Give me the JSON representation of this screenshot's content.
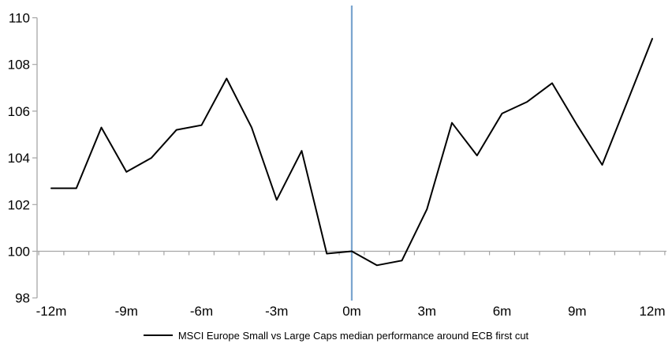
{
  "chart_data": {
    "type": "line",
    "title": "",
    "xlabel": "",
    "ylabel": "",
    "legend": "MSCI Europe Small vs Large Caps median performance around ECB first cut",
    "legend_position": "bottom-center",
    "x_unit": "months relative to ECB first cut",
    "x": [
      -12,
      -11,
      -10,
      -9,
      -8,
      -7,
      -6,
      -5,
      -4,
      -3,
      -2,
      -1,
      0,
      1,
      2,
      3,
      4,
      5,
      6,
      7,
      8,
      9,
      10,
      11,
      12
    ],
    "series": [
      {
        "name": "MSCI Europe Small vs Large Caps median performance around ECB first cut",
        "values": [
          102.7,
          102.7,
          105.3,
          103.4,
          104.0,
          105.2,
          105.4,
          107.4,
          105.3,
          102.2,
          104.3,
          99.9,
          100.0,
          99.4,
          99.6,
          101.8,
          105.5,
          104.1,
          105.9,
          106.4,
          107.2,
          105.4,
          103.7,
          106.4,
          109.1
        ]
      }
    ],
    "x_tick_labels": [
      "-12m",
      "-9m",
      "-6m",
      "-3m",
      "0m",
      "3m",
      "6m",
      "9m",
      "12m"
    ],
    "x_tick_positions": [
      -12,
      -9,
      -6,
      -3,
      0,
      3,
      6,
      9,
      12
    ],
    "x_minor_tick_boundaries": [
      -12.5,
      -11.5,
      -10.5,
      -9.5,
      -8.5,
      -7.5,
      -6.5,
      -5.5,
      -4.5,
      -3.5,
      -2.5,
      -1.5,
      -0.5,
      0.5,
      1.5,
      2.5,
      3.5,
      4.5,
      5.5,
      6.5,
      7.5,
      8.5,
      9.5,
      10.5,
      11.5,
      12.5
    ],
    "y_tick_labels": [
      "110",
      "108",
      "106",
      "104",
      "102",
      "100",
      "98"
    ],
    "y_ticks": [
      110,
      108,
      106,
      104,
      102,
      100,
      98
    ],
    "ylim": [
      98,
      110
    ],
    "xlim": [
      -12.5,
      12.5
    ],
    "baseline_value": 100,
    "event_line_x": 0,
    "grid": "horizontal baseline at 100 only",
    "colors": {
      "series": "#000000",
      "event_line": "#7CA6CF",
      "axis": "#A6A6A6",
      "text": "#000000",
      "background": "#FFFFFF"
    }
  }
}
